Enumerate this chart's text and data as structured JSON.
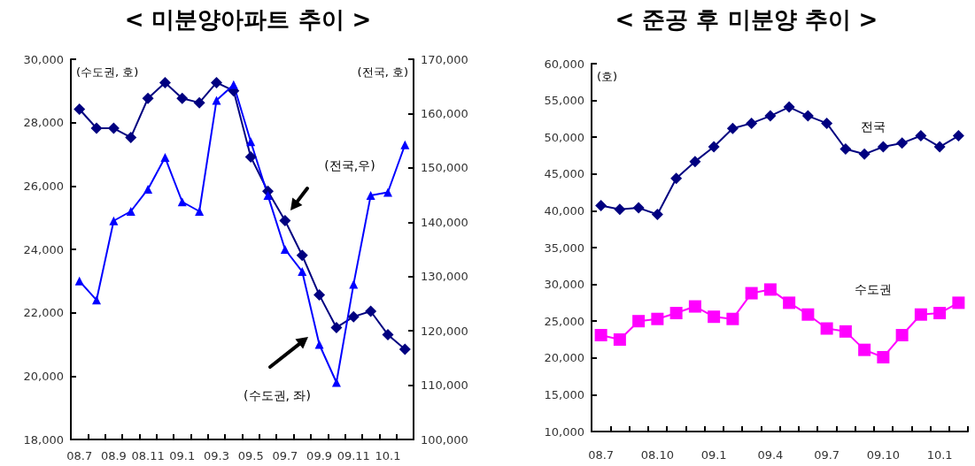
{
  "chart_data": [
    {
      "type": "line",
      "title": "< 미분양아파트 추이 >",
      "ylabel": "(수도권, 호)",
      "y2label": "(전국, 호)",
      "categories": [
        "08.7",
        null,
        "08.9",
        null,
        "08.11",
        null,
        "09.1",
        null,
        "09.3",
        null,
        "09.5",
        null,
        "09.7",
        null,
        "09.9",
        null,
        "09.11",
        null,
        "10.1",
        null
      ],
      "series": [
        {
          "color": "#000080",
          "marker": "diamond",
          "axis": "y2",
          "values": [
            160800,
            157300,
            157300,
            155600,
            162800,
            165700,
            162800,
            162000,
            165700,
            164200,
            152000,
            145700,
            140300,
            133900,
            126600,
            120600,
            122600,
            123600,
            119300,
            116600
          ]
        },
        {
          "color": "#0000ff",
          "marker": "triangle",
          "values": [
            23000,
            22400,
            24900,
            25200,
            25900,
            26900,
            25500,
            25200,
            28700,
            29200,
            27400,
            25700,
            24000,
            23300,
            21000,
            19800,
            22900,
            25700,
            25800,
            27300
          ]
        }
      ],
      "ylim": [
        18000,
        30000
      ],
      "yticks": [
        {
          "value": 18000,
          "label": "18,000"
        },
        {
          "value": 20000,
          "label": "20,000"
        },
        {
          "value": 22000,
          "label": "22,000"
        },
        {
          "value": 24000,
          "label": "24,000"
        },
        {
          "value": 26000,
          "label": "26,000"
        },
        {
          "value": 28000,
          "label": "28,000"
        },
        {
          "value": 30000,
          "label": "30,000"
        }
      ],
      "y2lim": [
        100000,
        170000
      ],
      "y2ticks": [
        {
          "value": 100000,
          "label": "100,000"
        },
        {
          "value": 110000,
          "label": "110,000"
        },
        {
          "value": 120000,
          "label": "120,000"
        },
        {
          "value": 130000,
          "label": "130,000"
        },
        {
          "value": 140000,
          "label": "140,000"
        },
        {
          "value": 150000,
          "label": "150,000"
        },
        {
          "value": 160000,
          "label": "160,000"
        },
        {
          "value": 170000,
          "label": "170,000"
        }
      ],
      "annotations": [
        "(전국,우)",
        "(수도권, 좌)"
      ],
      "grid": false
    },
    {
      "type": "line",
      "title": "< 준공 후 미분양 추이 >",
      "ylabel": "(호)",
      "categories": [
        "08.7",
        null,
        null,
        "08.10",
        null,
        null,
        "09.1",
        null,
        null,
        "09.4",
        null,
        null,
        "09.7",
        null,
        null,
        "09.10",
        null,
        null,
        "10.1",
        null
      ],
      "series": [
        {
          "name": "전국",
          "color": "#000080",
          "marker": "diamond",
          "values": [
            40700,
            40200,
            40400,
            39500,
            44400,
            46700,
            48700,
            51200,
            51900,
            52900,
            54100,
            52900,
            51900,
            48400,
            47700,
            48700,
            49200,
            50200,
            48700,
            50200
          ]
        },
        {
          "name": "수도권",
          "color": "#ff00ff",
          "marker": "square",
          "values": [
            23100,
            22500,
            25000,
            25300,
            26100,
            27000,
            25600,
            25300,
            28800,
            29300,
            27500,
            25900,
            24000,
            23600,
            21100,
            20100,
            23100,
            25900,
            26100,
            27500
          ]
        }
      ],
      "ylim": [
        10000,
        60000
      ],
      "yticks": [
        {
          "value": 10000,
          "label": "10,000"
        },
        {
          "value": 15000,
          "label": "15,000"
        },
        {
          "value": 20000,
          "label": "20,000"
        },
        {
          "value": 25000,
          "label": "25,000"
        },
        {
          "value": 30000,
          "label": "30,000"
        },
        {
          "value": 35000,
          "label": "35,000"
        },
        {
          "value": 40000,
          "label": "40,000"
        },
        {
          "value": 45000,
          "label": "45,000"
        },
        {
          "value": 50000,
          "label": "50,000"
        },
        {
          "value": 55000,
          "label": "55,000"
        },
        {
          "value": 60000,
          "label": "60,000"
        }
      ],
      "grid": false
    }
  ]
}
